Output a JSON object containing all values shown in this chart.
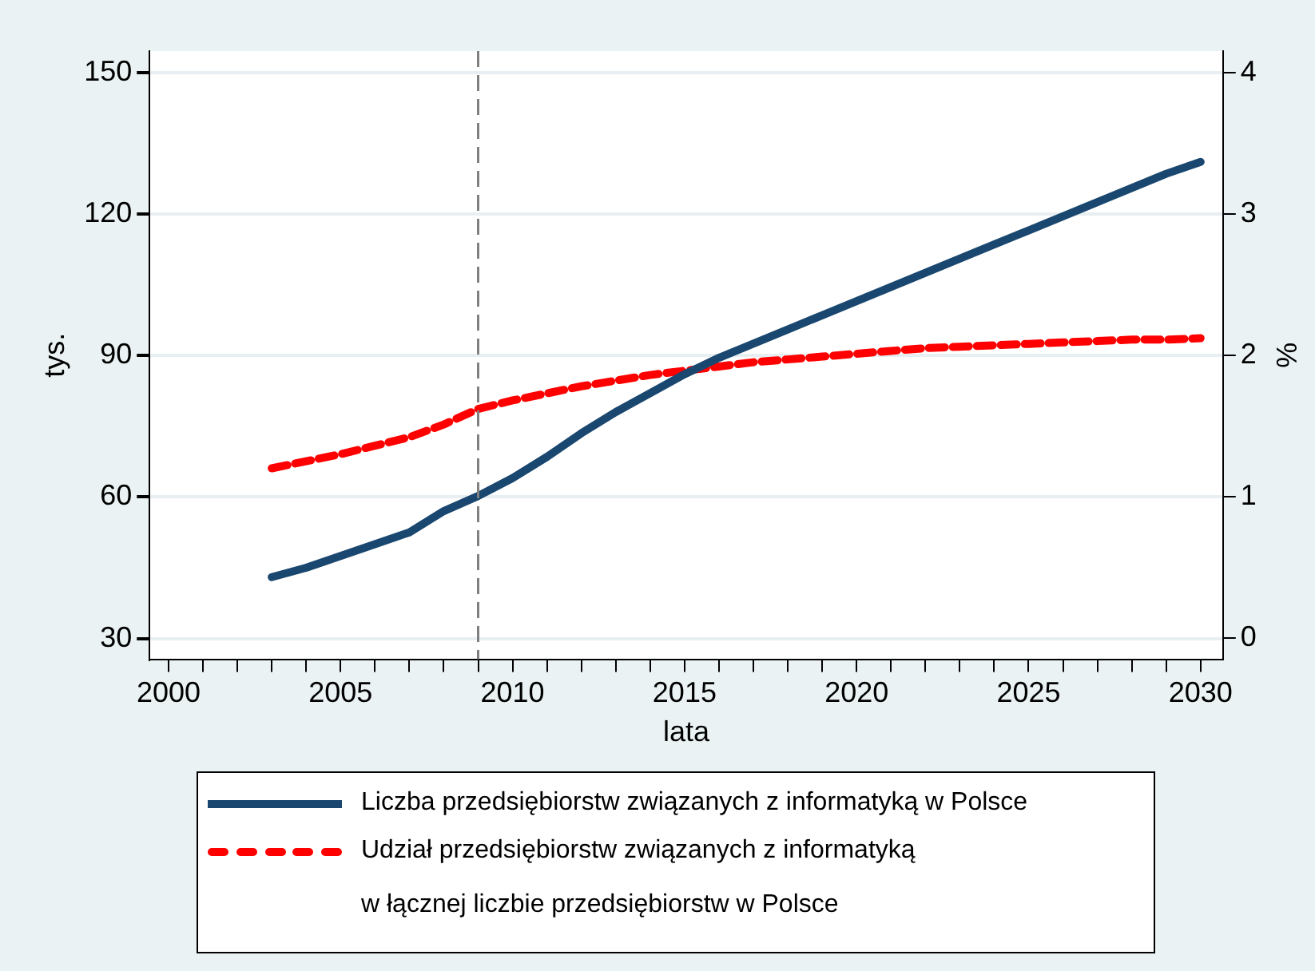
{
  "chart_data": {
    "type": "line",
    "xlabel": "lata",
    "ylabel": "tys.",
    "y2label": "%",
    "x": [
      2003,
      2004,
      2005,
      2006,
      2007,
      2008,
      2009,
      2010,
      2011,
      2012,
      2013,
      2014,
      2015,
      2016,
      2017,
      2018,
      2019,
      2020,
      2021,
      2022,
      2023,
      2024,
      2025,
      2026,
      2027,
      2028,
      2029,
      2030
    ],
    "series": [
      {
        "name": "Liczba przedsiębiorstw związanych z informatyką w Polsce",
        "color": "#1a476f",
        "line_style": "solid",
        "values": [
          43,
          45,
          47.5,
          50,
          52.5,
          57,
          60.2,
          64,
          68.5,
          73.5,
          78,
          82,
          86,
          89.5,
          92.5,
          95.5,
          98.5,
          101.5,
          104.5,
          107.5,
          110.5,
          113.5,
          116.5,
          119.5,
          122.5,
          125.5,
          128.5,
          131
        ]
      },
      {
        "name": "Udział przedsiębiorstw związanych z informatyką\nw łącznej liczbie przedsiębiorstw w Polsce",
        "color": "#ff0000",
        "line_style": "dashed",
        "axis": "y2",
        "values": [
          1.2,
          1.25,
          1.3,
          1.36,
          1.42,
          1.51,
          1.62,
          1.68,
          1.73,
          1.78,
          1.82,
          1.86,
          1.89,
          1.92,
          1.95,
          1.97,
          1.99,
          2.01,
          2.03,
          2.05,
          2.06,
          2.07,
          2.08,
          2.09,
          2.1,
          2.11,
          2.11,
          2.12
        ]
      }
    ],
    "xlim": [
      1999.45,
      2030.65
    ],
    "xticks": [
      2000,
      {
        "value": 2001,
        "label": null
      },
      {
        "value": 2002,
        "label": null
      },
      {
        "value": 2003,
        "label": null
      },
      {
        "value": 2004,
        "label": null
      },
      2005,
      {
        "value": 2006,
        "label": null
      },
      {
        "value": 2007,
        "label": null
      },
      {
        "value": 2008,
        "label": null
      },
      {
        "value": 2009,
        "label": null
      },
      2010,
      {
        "value": 2011,
        "label": null
      },
      {
        "value": 2012,
        "label": null
      },
      {
        "value": 2013,
        "label": null
      },
      {
        "value": 2014,
        "label": null
      },
      2015,
      {
        "value": 2016,
        "label": null
      },
      {
        "value": 2017,
        "label": null
      },
      {
        "value": 2018,
        "label": null
      },
      {
        "value": 2019,
        "label": null
      },
      2020,
      {
        "value": 2021,
        "label": null
      },
      {
        "value": 2022,
        "label": null
      },
      {
        "value": 2023,
        "label": null
      },
      {
        "value": 2024,
        "label": null
      },
      2025,
      {
        "value": 2026,
        "label": null
      },
      {
        "value": 2027,
        "label": null
      },
      {
        "value": 2028,
        "label": null
      },
      {
        "value": 2029,
        "label": null
      },
      2030
    ],
    "ylim": [
      25.6,
      154.5
    ],
    "yticks": [
      30,
      60,
      90,
      120,
      150
    ],
    "y2lim": [
      -0.15,
      4.15
    ],
    "y2ticks": [
      0,
      1,
      2,
      3,
      4
    ],
    "ref_lines": [
      {
        "axis": "x",
        "value": 2009,
        "color": "#808080",
        "line_style": "dashed"
      }
    ],
    "grid": "y",
    "legend": "bottom",
    "marker": "none"
  }
}
